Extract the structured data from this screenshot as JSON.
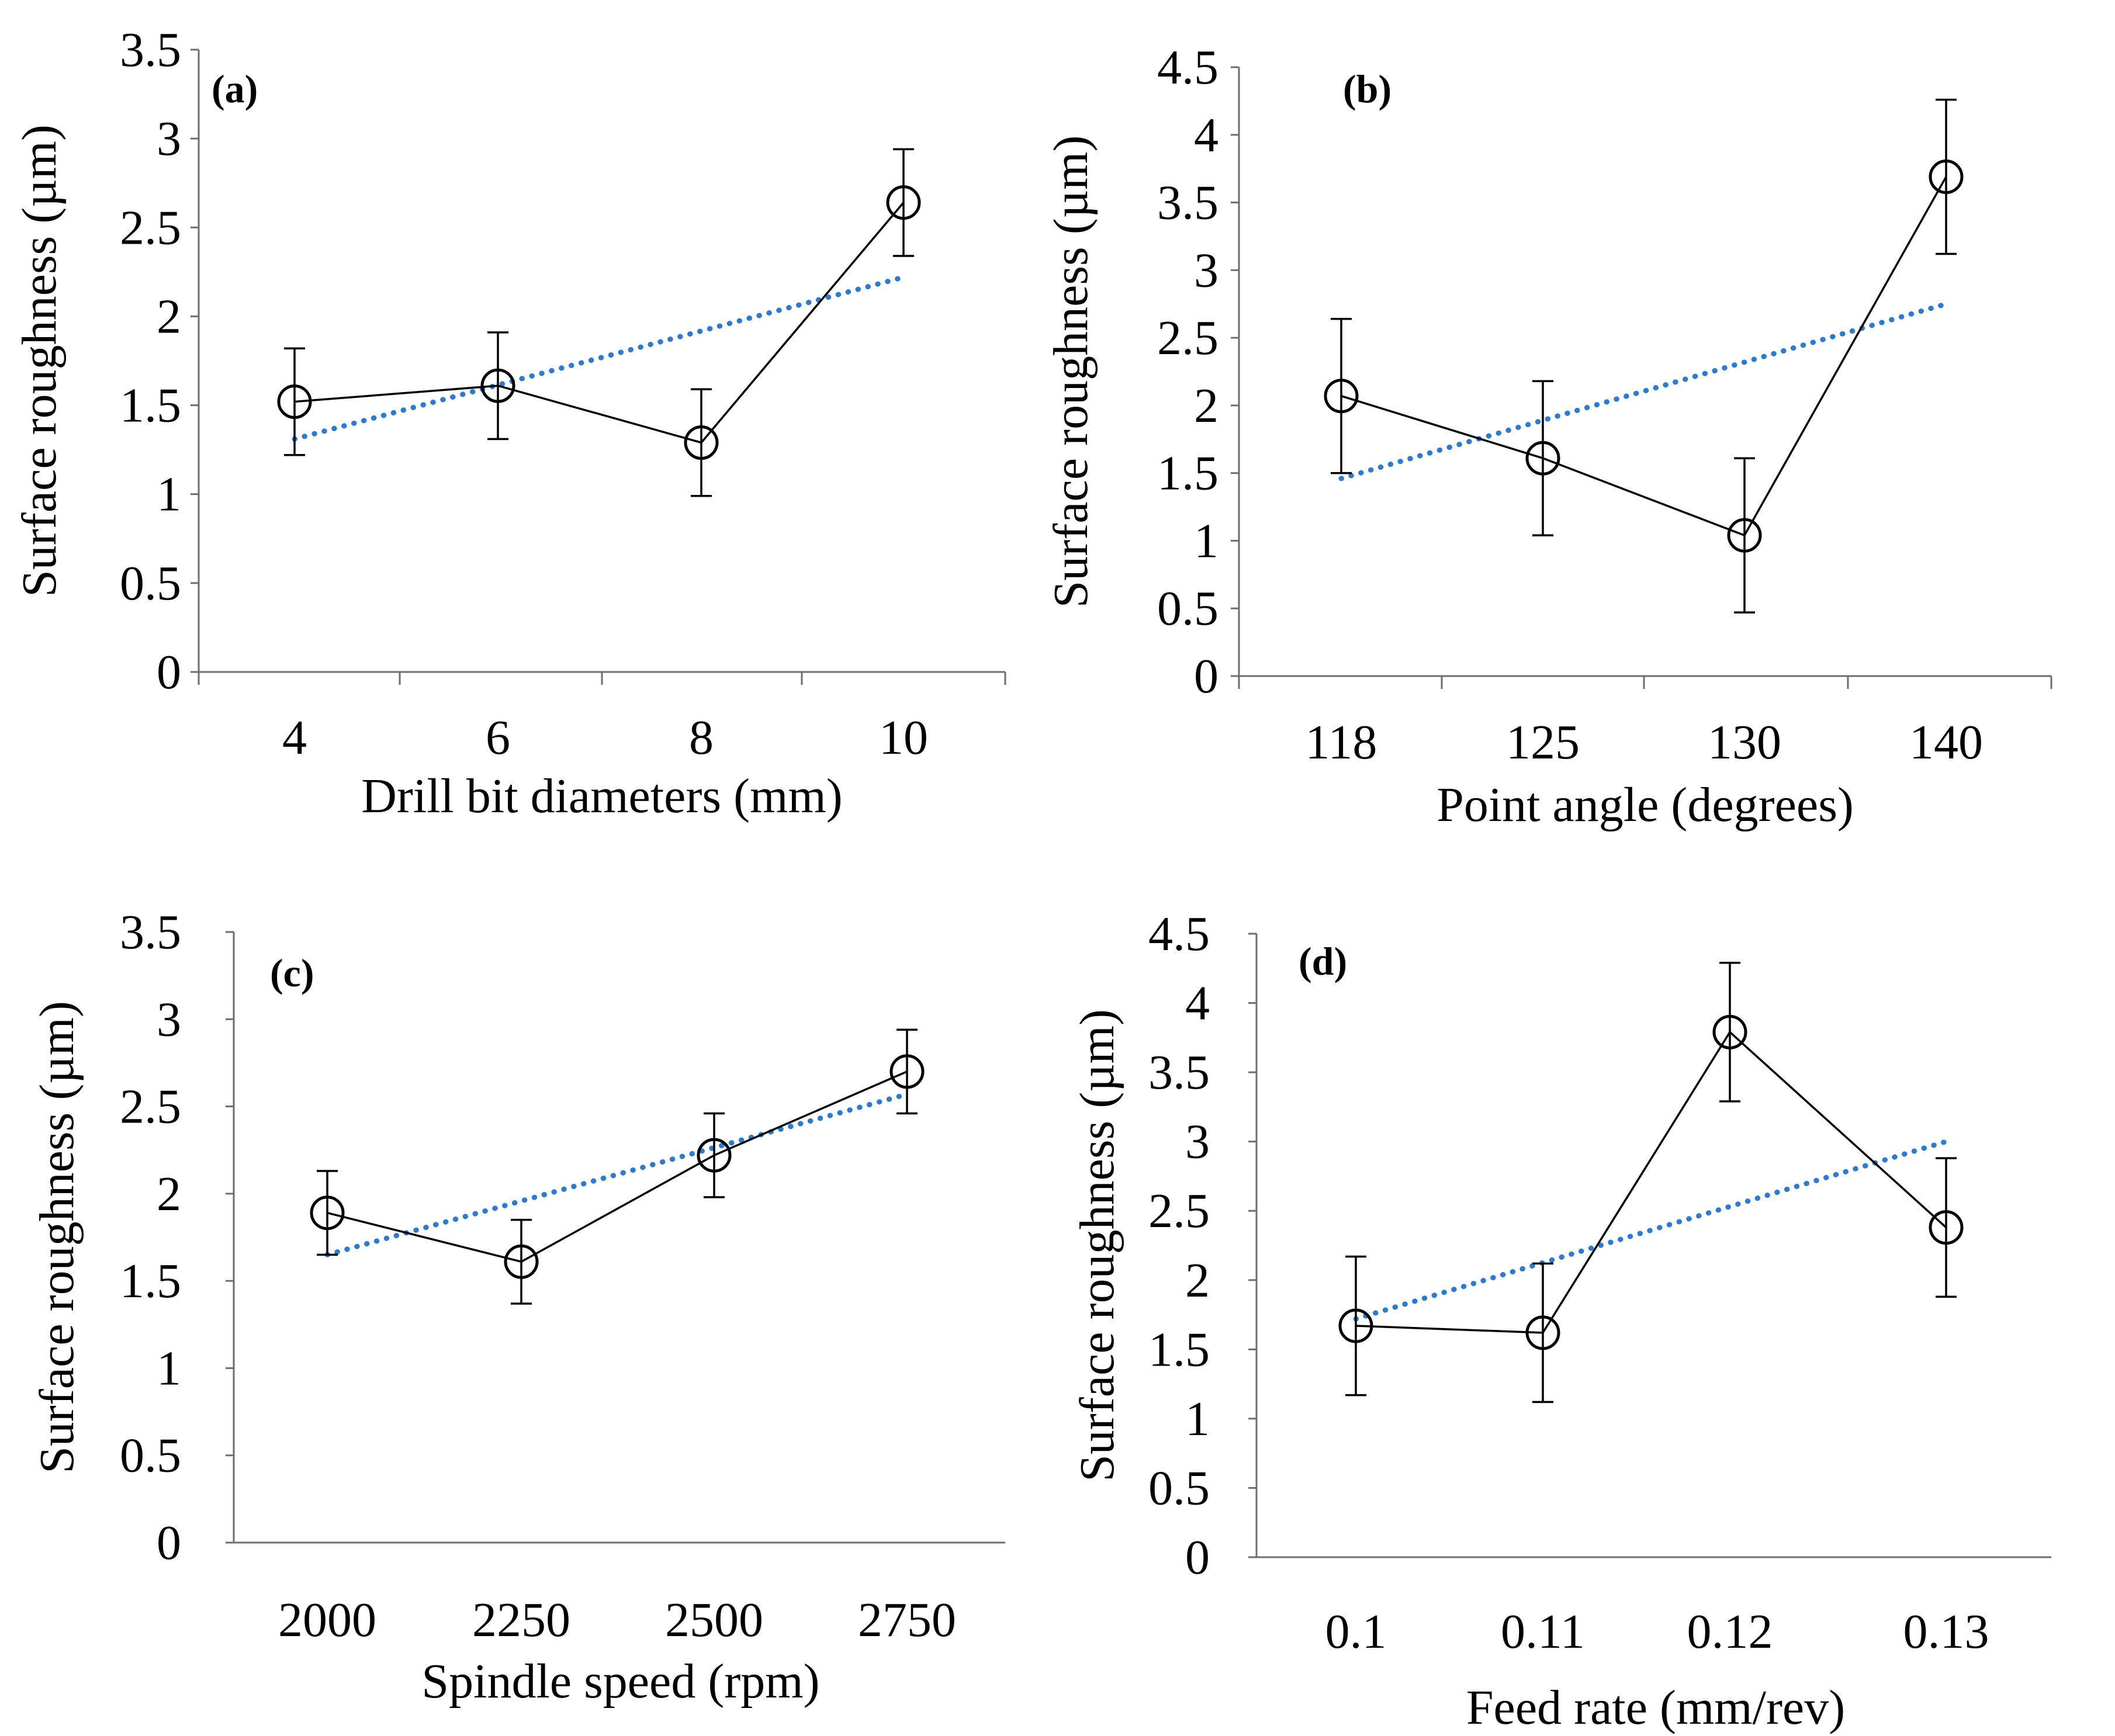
{
  "colors": {
    "trendline": "#2e7ad1",
    "series": "#000000",
    "axis": "#6e6e6e"
  },
  "chart_data": [
    {
      "type": "line",
      "panel_label": "(a)",
      "xlabel": "Drill bit diameters (mm)",
      "ylabel": "Surface roughness (µm)",
      "categories": [
        "4",
        "6",
        "8",
        "10"
      ],
      "values": [
        1.52,
        1.61,
        1.29,
        2.64
      ],
      "error": [
        0.3,
        0.3,
        0.3,
        0.3
      ],
      "trend": [
        1.31,
        1.62,
        1.92,
        2.22
      ],
      "ylim": [
        0,
        3.5
      ],
      "yticks": [
        "0",
        "0.5",
        "1",
        "1.5",
        "2",
        "2.5",
        "3",
        "3.5"
      ],
      "ytick_values": [
        0,
        0.5,
        1,
        1.5,
        2,
        2.5,
        3,
        3.5
      ]
    },
    {
      "type": "line",
      "panel_label": "(b)",
      "xlabel": "Point angle (degrees)",
      "ylabel": "Surface roughness (µm)",
      "categories": [
        "118",
        "125",
        "130",
        "140"
      ],
      "values": [
        2.07,
        1.61,
        1.04,
        3.69
      ],
      "error": [
        0.57,
        0.57,
        0.57,
        0.57
      ],
      "trend": [
        1.46,
        1.89,
        2.32,
        2.75
      ],
      "ylim": [
        0,
        4.5
      ],
      "yticks": [
        "0",
        "0.5",
        "1",
        "1.5",
        "2",
        "2.5",
        "3",
        "3.5",
        "4",
        "4.5"
      ],
      "ytick_values": [
        0,
        0.5,
        1,
        1.5,
        2,
        2.5,
        3,
        3.5,
        4,
        4.5
      ]
    },
    {
      "type": "line",
      "panel_label": "(c)",
      "xlabel": "Spindle speed (rpm)",
      "ylabel": "Surface roughness (µm)",
      "categories": [
        "2000",
        "2250",
        "2500",
        "2750"
      ],
      "values": [
        1.89,
        1.61,
        2.22,
        2.7
      ],
      "error": [
        0.24,
        0.24,
        0.24,
        0.24
      ],
      "trend": [
        1.65,
        1.96,
        2.26,
        2.57
      ],
      "ylim": [
        0,
        3.5
      ],
      "yticks": [
        "0",
        "0.5",
        "1",
        "1.5",
        "2",
        "2.5",
        "3",
        "3.5"
      ],
      "ytick_values": [
        0,
        0.5,
        1,
        1.5,
        2,
        2.5,
        3,
        3.5
      ]
    },
    {
      "type": "line",
      "panel_label": "(d)",
      "xlabel": "Feed rate (mm/rev)",
      "ylabel": "Surface roughness (µm)",
      "categories": [
        "0.1",
        "0.11",
        "0.12",
        "0.13"
      ],
      "values": [
        1.67,
        1.62,
        3.79,
        2.38
      ],
      "error": [
        0.5,
        0.5,
        0.5,
        0.5
      ],
      "trend": [
        1.72,
        2.14,
        2.57,
        3.0
      ],
      "ylim": [
        0,
        4.5
      ],
      "yticks": [
        "0",
        "0.5",
        "1",
        "1.5",
        "2",
        "2.5",
        "3",
        "3.5",
        "4",
        "4.5"
      ],
      "ytick_values": [
        0,
        0.5,
        1,
        1.5,
        2,
        2.5,
        3,
        3.5,
        4,
        4.5
      ]
    }
  ]
}
